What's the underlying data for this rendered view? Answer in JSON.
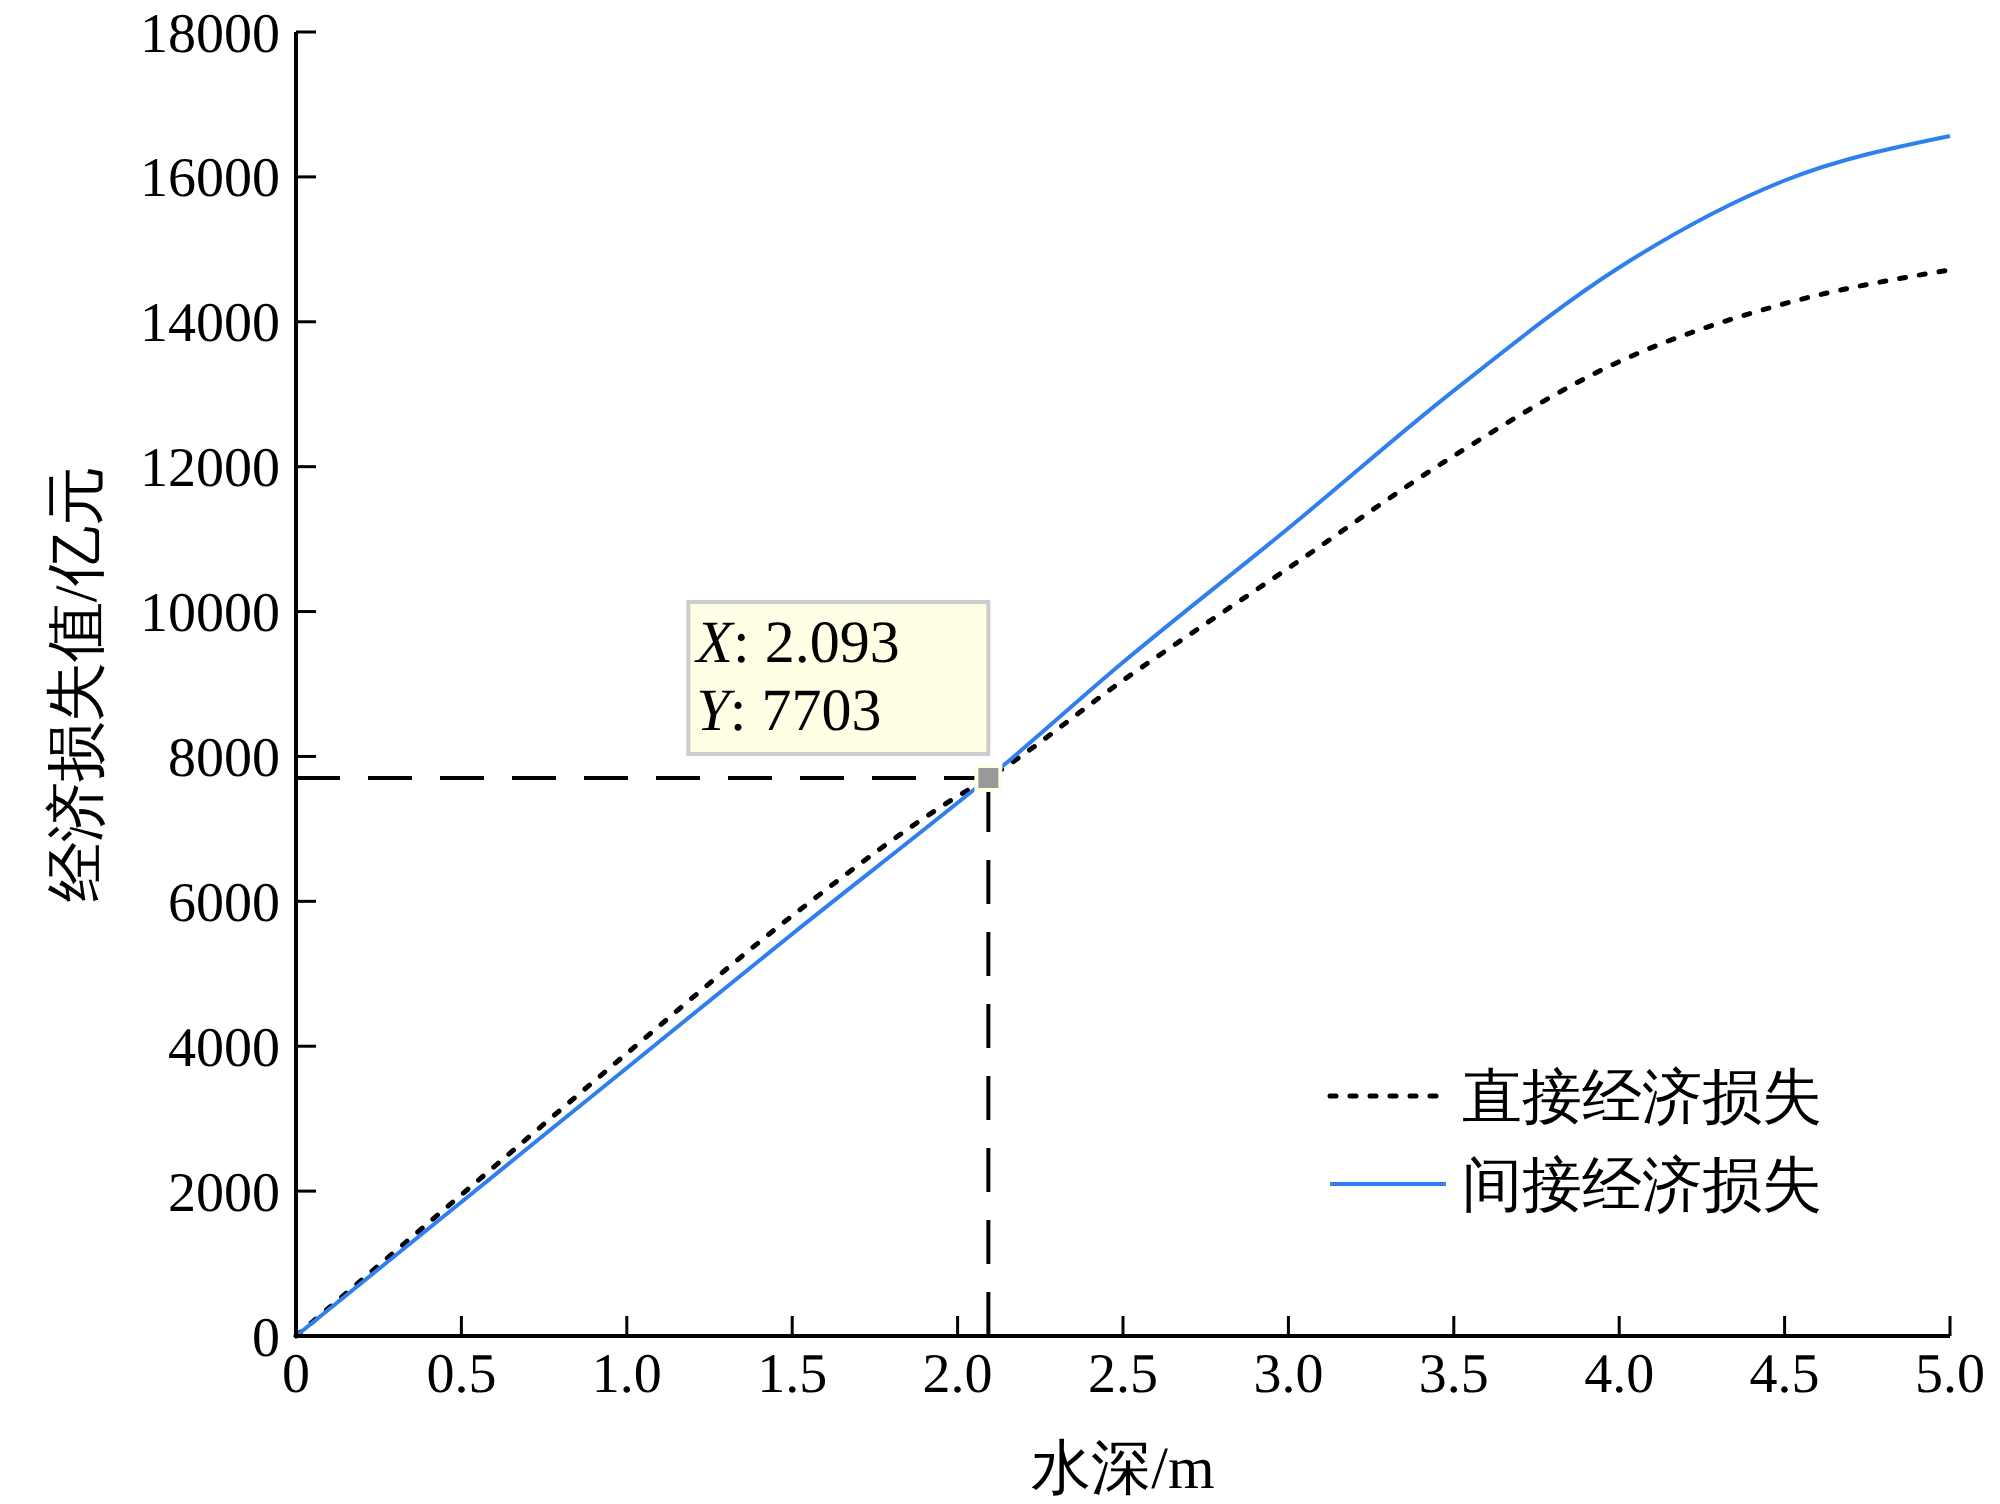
{
  "chart_data": {
    "type": "line",
    "xlabel": "水深/m",
    "ylabel": "经济损失值/亿元",
    "x": [
      0,
      0.5,
      1.0,
      1.5,
      2.0,
      2.093,
      2.5,
      3.0,
      3.5,
      4.0,
      4.5,
      5.0
    ],
    "series": [
      {
        "name": "直接经济损失",
        "color": "#000000",
        "line_style": "dotted",
        "values": [
          0,
          1950,
          3900,
          5800,
          7450,
          7703,
          9050,
          10600,
          12150,
          13450,
          14250,
          14716
        ]
      },
      {
        "name": "间接经济损失",
        "color": "#2f7fef",
        "line_style": "solid",
        "values": [
          0,
          1850,
          3700,
          5550,
          7360,
          7703,
          9300,
          11150,
          13050,
          14750,
          15950,
          16565
        ]
      }
    ],
    "xlim": [
      0,
      5
    ],
    "xticks": [
      {
        "value": 0,
        "label": "0"
      },
      {
        "value": 0.5,
        "label": "0.5"
      },
      {
        "value": 1,
        "label": "1.0"
      },
      {
        "value": 1.5,
        "label": "1.5"
      },
      {
        "value": 2,
        "label": "2.0"
      },
      {
        "value": 2.5,
        "label": "2.5"
      },
      {
        "value": 3,
        "label": "3.0"
      },
      {
        "value": 3.5,
        "label": "3.5"
      },
      {
        "value": 4,
        "label": "4.0"
      },
      {
        "value": 4.5,
        "label": "4.5"
      },
      {
        "value": 5,
        "label": "5.0"
      }
    ],
    "ylim": [
      0,
      18000
    ],
    "yticks": [
      0,
      2000,
      4000,
      6000,
      8000,
      10000,
      12000,
      14000,
      16000,
      18000
    ],
    "ref_lines": [
      {
        "axis": "x",
        "value": 2.093,
        "line_style": "dashed"
      },
      {
        "axis": "y",
        "value": 7703,
        "line_style": "dashed"
      }
    ],
    "annotations": [
      {
        "text": "X: 2.093\nY: 7703",
        "x": 2.093,
        "y": 7703
      }
    ],
    "legend": "bottom right",
    "grid": false,
    "marker": "none"
  }
}
